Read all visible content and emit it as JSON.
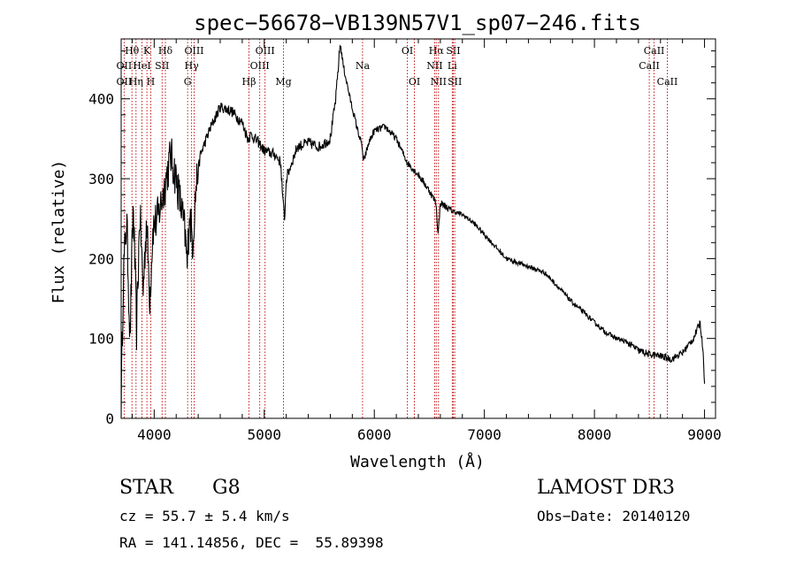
{
  "chart_data": {
    "type": "line",
    "title": "spec−56678−VB139N57V1_sp07−246.fits",
    "xlabel": "Wavelength (Å)",
    "ylabel": "Flux (relative)",
    "xlim": [
      3700,
      9100
    ],
    "ylim": [
      0,
      475
    ],
    "xticks": [
      4000,
      5000,
      6000,
      7000,
      8000,
      9000
    ],
    "yticks": [
      0,
      100,
      200,
      300,
      400
    ],
    "grid": false,
    "series": [
      {
        "name": "flux",
        "anchors": [
          [
            3700,
            20
          ],
          [
            3720,
            180
          ],
          [
            3750,
            250
          ],
          [
            3780,
            100
          ],
          [
            3810,
            270
          ],
          [
            3840,
            110
          ],
          [
            3870,
            260
          ],
          [
            3900,
            160
          ],
          [
            3930,
            250
          ],
          [
            3960,
            150
          ],
          [
            3990,
            240
          ],
          [
            4030,
            250
          ],
          [
            4080,
            280
          ],
          [
            4150,
            330
          ],
          [
            4200,
            300
          ],
          [
            4250,
            260
          ],
          [
            4280,
            230
          ],
          [
            4300,
            190
          ],
          [
            4320,
            260
          ],
          [
            4350,
            220
          ],
          [
            4380,
            290
          ],
          [
            4420,
            330
          ],
          [
            4500,
            360
          ],
          [
            4600,
            390
          ],
          [
            4700,
            385
          ],
          [
            4800,
            370
          ],
          [
            4850,
            350
          ],
          [
            4880,
            355
          ],
          [
            4950,
            345
          ],
          [
            5000,
            335
          ],
          [
            5100,
            330
          ],
          [
            5150,
            320
          ],
          [
            5170,
            270
          ],
          [
            5185,
            250
          ],
          [
            5200,
            300
          ],
          [
            5300,
            340
          ],
          [
            5400,
            345
          ],
          [
            5500,
            340
          ],
          [
            5600,
            350
          ],
          [
            5650,
            400
          ],
          [
            5690,
            470
          ],
          [
            5720,
            440
          ],
          [
            5780,
            400
          ],
          [
            5850,
            360
          ],
          [
            5890,
            340
          ],
          [
            5900,
            320
          ],
          [
            5950,
            345
          ],
          [
            6000,
            360
          ],
          [
            6100,
            365
          ],
          [
            6200,
            350
          ],
          [
            6300,
            320
          ],
          [
            6400,
            305
          ],
          [
            6500,
            285
          ],
          [
            6560,
            270
          ],
          [
            6580,
            230
          ],
          [
            6600,
            270
          ],
          [
            6700,
            260
          ],
          [
            6800,
            255
          ],
          [
            6900,
            245
          ],
          [
            7000,
            230
          ],
          [
            7100,
            215
          ],
          [
            7200,
            200
          ],
          [
            7300,
            195
          ],
          [
            7400,
            190
          ],
          [
            7500,
            185
          ],
          [
            7550,
            182
          ],
          [
            7600,
            175
          ],
          [
            7700,
            160
          ],
          [
            7800,
            145
          ],
          [
            7900,
            133
          ],
          [
            8000,
            120
          ],
          [
            8100,
            108
          ],
          [
            8200,
            100
          ],
          [
            8300,
            95
          ],
          [
            8400,
            85
          ],
          [
            8500,
            80
          ],
          [
            8600,
            78
          ],
          [
            8700,
            74
          ],
          [
            8800,
            82
          ],
          [
            8900,
            100
          ],
          [
            8960,
            120
          ],
          [
            8990,
            80
          ],
          [
            9000,
            40
          ]
        ]
      }
    ],
    "lines": [
      {
        "label": "Hθ",
        "x": 3798,
        "row": 0
      },
      {
        "label": "OII",
        "x": 3727,
        "row": 1
      },
      {
        "label": "OII",
        "x": 3727,
        "row": 2
      },
      {
        "label": "K",
        "x": 3934,
        "row": 0
      },
      {
        "label": "HeI",
        "x": 3889,
        "row": 1
      },
      {
        "label": "Hη",
        "x": 3835,
        "row": 2
      },
      {
        "label": "Hδ",
        "x": 4102,
        "row": 0
      },
      {
        "label": "SII",
        "x": 4072,
        "row": 1
      },
      {
        "label": "H",
        "x": 3969,
        "row": 2
      },
      {
        "label": "OIII",
        "x": 4363,
        "row": 0
      },
      {
        "label": "Hγ",
        "x": 4340,
        "row": 1
      },
      {
        "label": "G",
        "x": 4304,
        "row": 2
      },
      {
        "label": "OIII",
        "x": 5007,
        "row": 0
      },
      {
        "label": "OIII",
        "x": 4959,
        "row": 1
      },
      {
        "label": "Hβ",
        "x": 4861,
        "row": 2
      },
      {
        "label": "Mg",
        "x": 5175,
        "row": 2
      },
      {
        "label": "Na",
        "x": 5893,
        "row": 1
      },
      {
        "label": "OI",
        "x": 6300,
        "row": 0
      },
      {
        "label": "OI",
        "x": 6364,
        "row": 2
      },
      {
        "label": "Hα",
        "x": 6563,
        "row": 0
      },
      {
        "label": "SII",
        "x": 6717,
        "row": 0
      },
      {
        "label": "NII",
        "x": 6548,
        "row": 1
      },
      {
        "label": "Li",
        "x": 6708,
        "row": 1
      },
      {
        "label": "NII",
        "x": 6583,
        "row": 2
      },
      {
        "label": "SII",
        "x": 6731,
        "row": 2
      },
      {
        "label": "CaII",
        "x": 8542,
        "row": 0
      },
      {
        "label": "CaII",
        "x": 8498,
        "row": 1
      },
      {
        "label": "CaII",
        "x": 8662,
        "row": 2
      }
    ]
  },
  "info": {
    "class_label": "STAR",
    "subclass": "G8",
    "cz": "cz = 55.7 ± 5.4 km/s",
    "coords": "RA = 141.14856, DEC =  55.89398",
    "survey": "LAMOST DR3",
    "obs_date": "Obs−Date: 20140120"
  }
}
